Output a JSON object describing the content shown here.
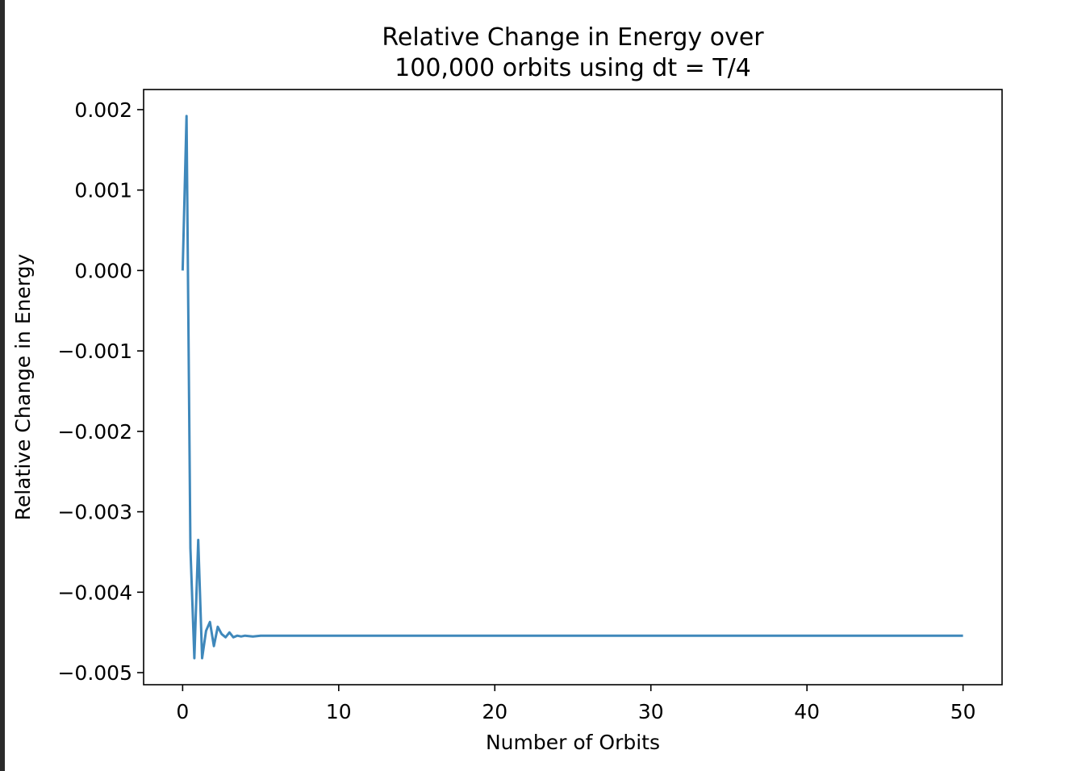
{
  "chart_data": {
    "type": "line",
    "title_lines": [
      "Relative Change in Energy over",
      "100,000 orbits using dt = T/4"
    ],
    "xlabel": "Number of Orbits",
    "ylabel": "Relative Change in Energy",
    "xlim": [
      -2.5,
      52.5
    ],
    "ylim": [
      -0.00515,
      0.00225
    ],
    "x_ticks": [
      0,
      10,
      20,
      30,
      40,
      50
    ],
    "x_tick_labels": [
      "0",
      "10",
      "20",
      "30",
      "40",
      "50"
    ],
    "y_ticks": [
      0.002,
      0.001,
      0.0,
      -0.001,
      -0.002,
      -0.003,
      -0.004,
      -0.005
    ],
    "y_tick_labels": [
      "0.002",
      "0.001",
      "0.000",
      "−0.001",
      "−0.002",
      "−0.003",
      "−0.004",
      "−0.005"
    ],
    "grid": false,
    "series_color": "#3f88bb",
    "series": [
      {
        "x": [
          0,
          0.25,
          0.5,
          0.75,
          1.0,
          1.25,
          1.5,
          1.75,
          2.0,
          2.25,
          2.5,
          2.75,
          3.0,
          3.25,
          3.5,
          3.75,
          4.0,
          4.5,
          5.0,
          6.0,
          10,
          20,
          30,
          40,
          50
        ],
        "y": [
          0.0,
          0.00192,
          -0.00345,
          -0.00482,
          -0.00335,
          -0.00482,
          -0.00448,
          -0.00437,
          -0.00467,
          -0.00443,
          -0.00452,
          -0.00456,
          -0.0045,
          -0.00456,
          -0.00454,
          -0.00455,
          -0.00454,
          -0.00455,
          -0.00454,
          -0.00454,
          -0.00454,
          -0.00454,
          -0.00454,
          -0.00454,
          -0.00454
        ]
      }
    ]
  }
}
